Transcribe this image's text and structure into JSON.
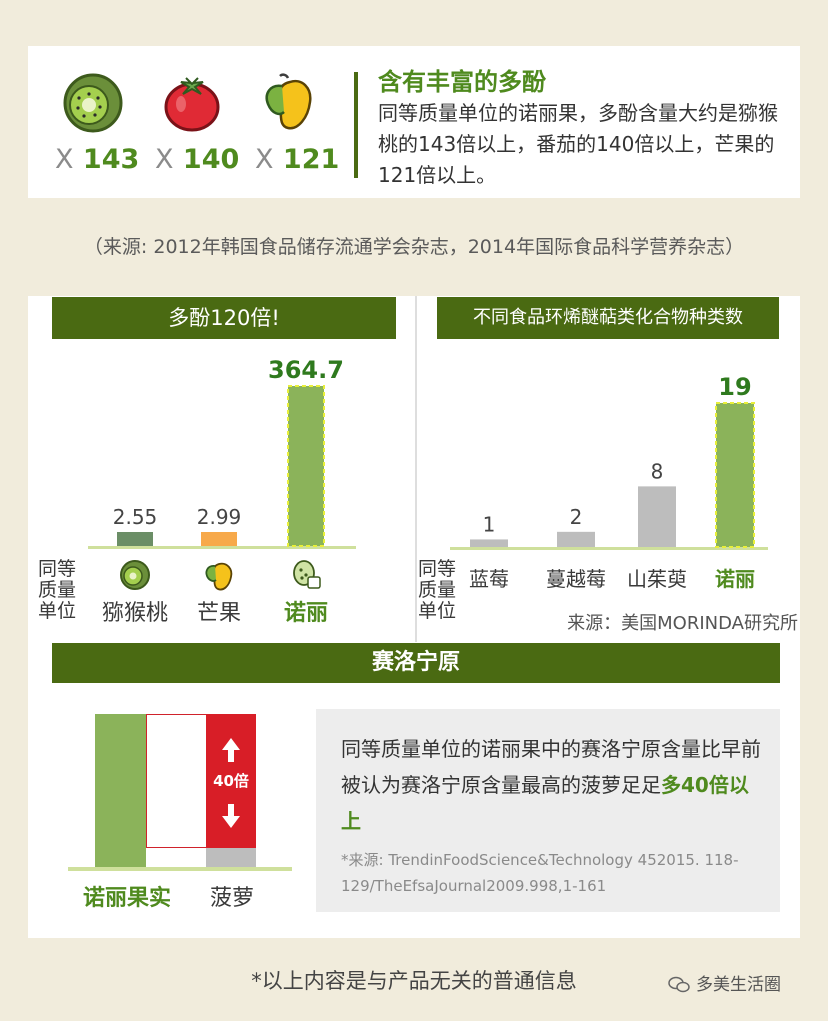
{
  "top": {
    "heading": "含有丰富的多酚",
    "description": "同等质量单位的诺丽果，多酚含量大约是猕猴桃的143倍以上，番茄的140倍以上，芒果的121倍以上。",
    "items": [
      {
        "icon": "kiwi-icon",
        "x": "X",
        "value": "143"
      },
      {
        "icon": "tomato-icon",
        "x": "X",
        "value": "140"
      },
      {
        "icon": "mango-icon",
        "x": "X",
        "value": "121"
      }
    ]
  },
  "source_line": "（来源: 2012年韩国食品储存流通学会杂志，2014年国际食品科学营养杂志）",
  "chart_data": [
    {
      "type": "bar",
      "title": "多酚120倍!",
      "unit_label": [
        "同等",
        "质量",
        "单位"
      ],
      "categories": [
        "猕猴桃",
        "芒果",
        "诺丽"
      ],
      "values": [
        2.55,
        2.99,
        364.7
      ],
      "value_labels": [
        "2.55",
        "2.99",
        "364.7"
      ],
      "colors": [
        "#6b8e66",
        "#f7a94a",
        "#8bb35a"
      ],
      "highlight_index": 2,
      "icons": [
        "kiwi-icon",
        "mango-icon",
        "noni-icon"
      ],
      "ylim": [
        0,
        364.7
      ]
    },
    {
      "type": "bar",
      "title": "不同食品环烯醚萜类化合物种类数",
      "unit_label": [
        "同等",
        "质量",
        "单位"
      ],
      "categories": [
        "蓝莓",
        "蔓越莓",
        "山茱萸",
        "诺丽"
      ],
      "values": [
        1,
        2,
        8,
        19
      ],
      "value_labels": [
        "1",
        "2",
        "8",
        "19"
      ],
      "colors": [
        "#bdbdbd",
        "#bdbdbd",
        "#bdbdbd",
        "#8bb35a"
      ],
      "highlight_index": 3,
      "ylim": [
        0,
        19
      ],
      "source": "来源：美国MORINDA研究所"
    }
  ],
  "comparison": {
    "title": "赛洛宁原",
    "bar_labels": [
      "诺丽果实",
      "菠萝"
    ],
    "multiplier": "40倍",
    "text_pre": "同等质量单位的诺丽果中的赛洛宁原含量比早前被认为赛洛宁原含量最高的菠萝足足",
    "text_highlight": "多40倍以上",
    "source": "*来源: TrendinFoodScience&Technology 452015. 118-129/TheEfsaJournal2009.998,1-161"
  },
  "footer_note": "*以上内容是与产品无关的普通信息",
  "watermark": "多美生活圈",
  "colors": {
    "dark_green": "#4a6a12",
    "accent_green": "#4f8a1e",
    "noni_bar": "#8bb35a",
    "red": "#d81e27",
    "grey": "#bdbdbd"
  }
}
